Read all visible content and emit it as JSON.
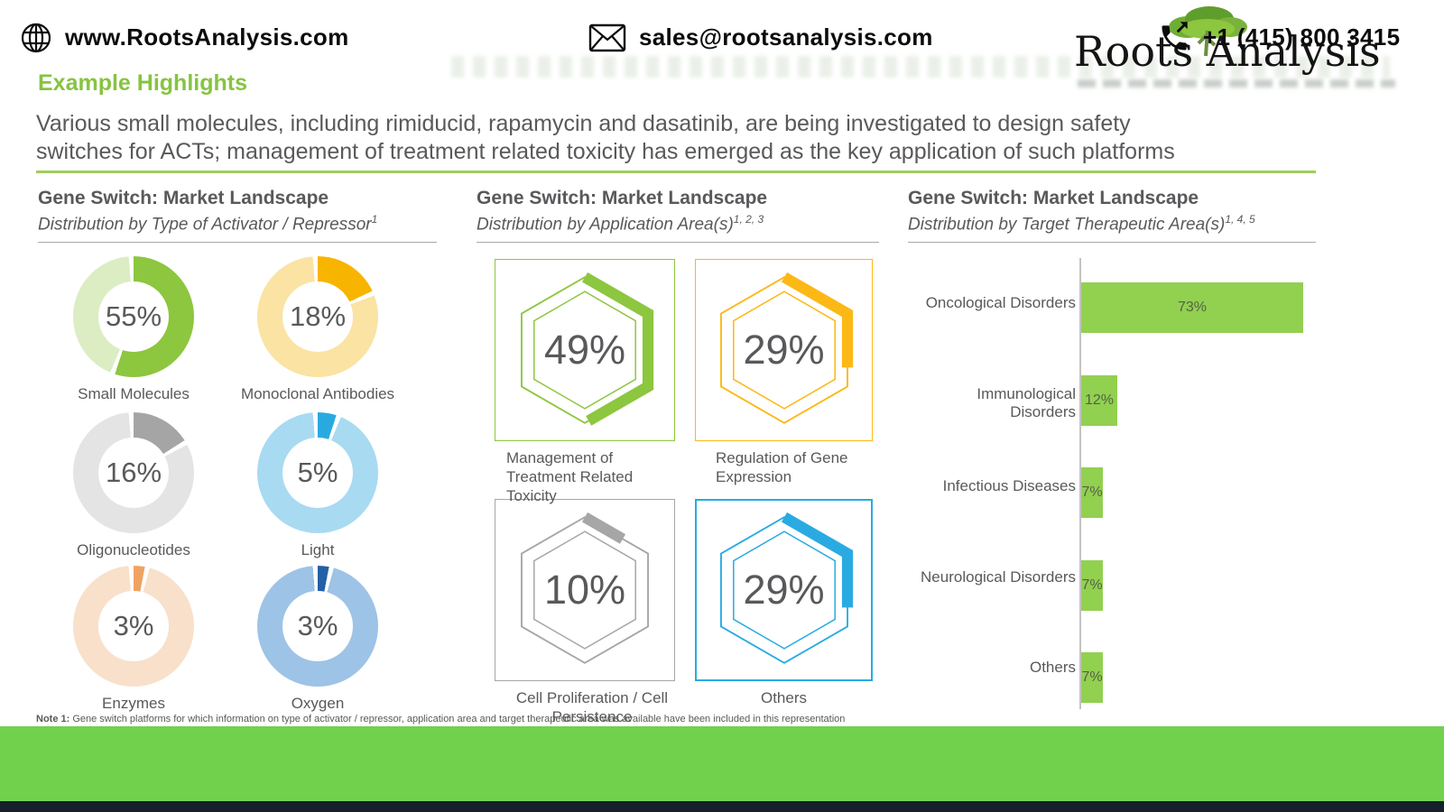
{
  "page": {
    "highlights_title": "Example Highlights",
    "intro_line1": "Various small molecules, including rimiducid, rapamycin and dasatinib, are being investigated to design safety",
    "intro_line2": "switches for ACTs; management of treatment related toxicity has emerged as the key application of such platforms"
  },
  "logo": {
    "name": "Roots Analysis",
    "tree_icon": "tree-icon"
  },
  "panels": [
    {
      "title": "Gene Switch: Market Landscape",
      "subtitle": "Distribution by Type of Activator / Repressor",
      "sup": "1"
    },
    {
      "title": "Gene Switch: Market Landscape",
      "subtitle": "Distribution by Application Area(s)",
      "sup": "1, 2, 3"
    },
    {
      "title": "Gene Switch: Market Landscape",
      "subtitle": "Distribution by Target Therapeutic Area(s)",
      "sup": "1, 4, 5"
    }
  ],
  "chart_data": [
    {
      "type": "pie",
      "title": "Distribution by Type of Activator / Repressor",
      "items": [
        {
          "label": "Small Molecules",
          "value": 55,
          "pct": "55%",
          "color": "#8dc63f",
          "track": "#dcedc3"
        },
        {
          "label": "Monoclonal Antibodies",
          "value": 18,
          "pct": "18%",
          "color": "#f7b500",
          "track": "#fae3a3"
        },
        {
          "label": "Oligonucleotides",
          "value": 16,
          "pct": "16%",
          "color": "#a5a5a5",
          "track": "#e4e4e4"
        },
        {
          "label": "Light",
          "value": 5,
          "pct": "5%",
          "color": "#28aae1",
          "track": "#a8daf2"
        },
        {
          "label": "Enzymes",
          "value": 3,
          "pct": "3%",
          "color": "#f0a263",
          "track": "#f8e0cb"
        },
        {
          "label": "Oxygen",
          "value": 3,
          "pct": "3%",
          "color": "#2260a8",
          "track": "#9dc3e6"
        }
      ]
    },
    {
      "type": "hex-gauge",
      "title": "Distribution by Application Area(s)",
      "items": [
        {
          "label": "Management of Treatment Related Toxicity",
          "value": 49,
          "pct": "49%",
          "color": "#8dc63f"
        },
        {
          "label": "Regulation of Gene Expression",
          "value": 29,
          "pct": "29%",
          "color": "#fcb815"
        },
        {
          "label": "Cell Proliferation / Cell Persistence",
          "value": 10,
          "pct": "10%",
          "color": "#a6a6a6"
        },
        {
          "label": "Others",
          "value": 29,
          "pct": "29%",
          "color": "#29abe2"
        }
      ]
    },
    {
      "type": "bar",
      "title": "Distribution by Target Therapeutic Area(s)",
      "categories": [
        "Oncological Disorders",
        "Immunological Disorders",
        "Infectious Diseases",
        "Neurological Disorders",
        "Others"
      ],
      "values": [
        73,
        12,
        7,
        7,
        7
      ],
      "value_labels": [
        "73%",
        "12%",
        "7%",
        "7%",
        "7%"
      ],
      "bar_color": "#92d050",
      "xlim": [
        0,
        100
      ],
      "legend": "none",
      "grid": false
    }
  ],
  "note": {
    "label": "Note 1:",
    "text": " Gene switch platforms for which information on type of activator / repressor, application area and target therapeutic area was available have been included in this representation"
  },
  "footer": {
    "website": "www.RootsAnalysis.com",
    "email": "sales@rootsanalysis.com",
    "phone": "+1 (415) 800 3415",
    "website_icon": "globe-icon",
    "email_icon": "envelope-icon",
    "phone_icon": "phone-call-icon",
    "bar_color": "#71d14d"
  }
}
